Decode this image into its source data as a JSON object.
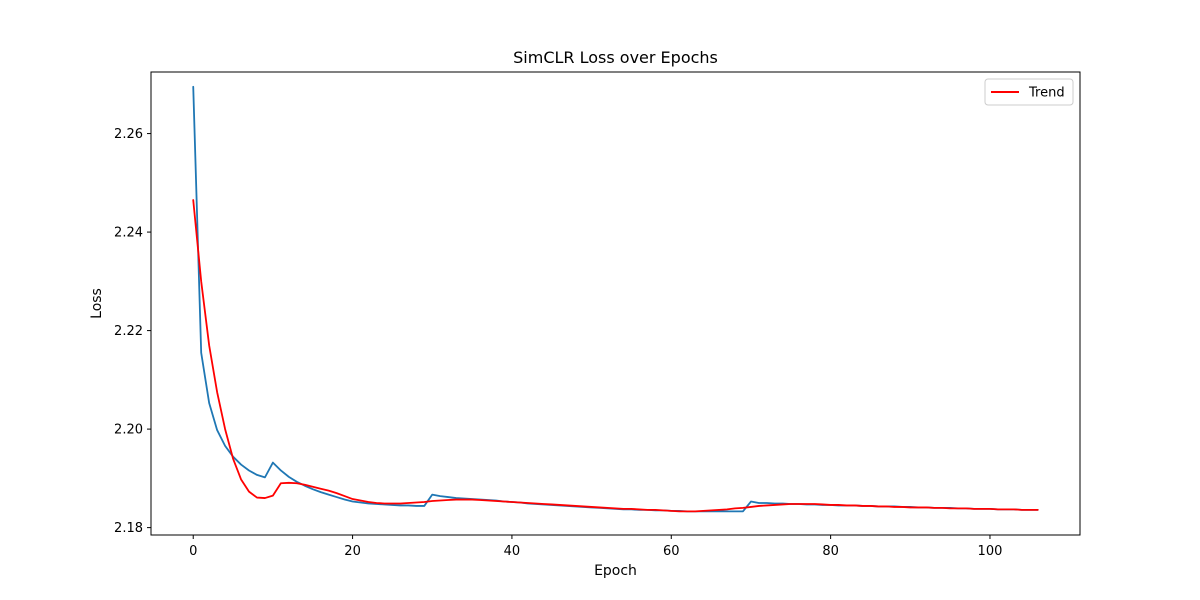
{
  "chart_data": {
    "type": "line",
    "title": "SimCLR Loss over Epochs",
    "xlabel": "Epoch",
    "ylabel": "Loss",
    "xlim": [
      -5.3,
      111.3
    ],
    "ylim": [
      2.1785,
      2.2725
    ],
    "xticks": [
      0,
      20,
      40,
      60,
      80,
      100
    ],
    "yticks": [
      2.18,
      2.2,
      2.22,
      2.24,
      2.26
    ],
    "grid": false,
    "legend_placement": "top-right",
    "colors": {
      "loss": "#1f77b4",
      "trend": "#ff0000"
    },
    "series": [
      {
        "key": "loss",
        "name": "",
        "x": [
          0,
          1,
          2,
          3,
          4,
          5,
          6,
          7,
          8,
          9,
          10,
          11,
          12,
          13,
          14,
          15,
          16,
          17,
          18,
          19,
          20,
          21,
          22,
          23,
          24,
          25,
          26,
          27,
          28,
          29,
          30,
          31,
          32,
          33,
          34,
          35,
          36,
          37,
          38,
          39,
          40,
          41,
          42,
          43,
          44,
          45,
          46,
          47,
          48,
          49,
          50,
          51,
          52,
          53,
          54,
          55,
          56,
          57,
          58,
          59,
          60,
          61,
          62,
          63,
          64,
          65,
          66,
          67,
          68,
          69,
          70,
          71,
          72,
          73,
          74,
          75,
          76,
          77,
          78,
          79,
          80,
          81,
          82,
          83,
          84,
          85,
          86,
          87,
          88,
          89,
          90,
          91,
          92,
          93,
          94,
          95,
          96,
          97,
          98,
          99,
          100,
          101,
          102,
          103,
          104,
          105,
          106
        ],
        "values": [
          2.2695,
          2.2155,
          2.2053,
          2.1998,
          2.1966,
          2.1944,
          2.1928,
          2.1916,
          2.1907,
          2.1902,
          2.1932,
          2.1916,
          2.1903,
          2.1893,
          2.1885,
          2.1878,
          2.1872,
          2.1867,
          2.1862,
          2.1857,
          2.1853,
          2.1851,
          2.1849,
          2.1848,
          2.1847,
          2.1846,
          2.1845,
          2.1845,
          2.1844,
          2.1844,
          2.1867,
          2.1864,
          2.1862,
          2.186,
          2.1859,
          2.1858,
          2.1857,
          2.1856,
          2.1855,
          2.1853,
          2.1852,
          2.1851,
          2.1849,
          2.1848,
          2.1847,
          2.1846,
          2.1845,
          2.1844,
          2.1843,
          2.1842,
          2.1841,
          2.184,
          2.1839,
          2.1838,
          2.1837,
          2.1837,
          2.1836,
          2.1836,
          2.1835,
          2.1835,
          2.1834,
          2.1834,
          2.1833,
          2.1833,
          2.1833,
          2.1833,
          2.1833,
          2.1833,
          2.1833,
          2.1833,
          2.1853,
          2.185,
          2.185,
          2.1849,
          2.1849,
          2.1848,
          2.1848,
          2.1847,
          2.1847,
          2.1846,
          2.1846,
          2.1845,
          2.1845,
          2.1845,
          2.1844,
          2.1844,
          2.1843,
          2.1843,
          2.1843,
          2.1842,
          2.1842,
          2.1841,
          2.1841,
          2.184,
          2.184,
          2.184,
          2.1839,
          2.1839,
          2.1838,
          2.1838,
          2.1838,
          2.1837,
          2.1837,
          2.1837,
          2.1836,
          2.1836,
          2.1836
        ]
      },
      {
        "key": "trend",
        "name": "Trend",
        "x": [
          0,
          1,
          2,
          3,
          4,
          5,
          6,
          7,
          8,
          9,
          10,
          11,
          12,
          13,
          14,
          15,
          16,
          17,
          18,
          19,
          20,
          21,
          22,
          23,
          24,
          25,
          26,
          27,
          28,
          29,
          30,
          31,
          32,
          33,
          34,
          35,
          36,
          37,
          38,
          39,
          40,
          41,
          42,
          43,
          44,
          45,
          46,
          47,
          48,
          49,
          50,
          51,
          52,
          53,
          54,
          55,
          56,
          57,
          58,
          59,
          60,
          61,
          62,
          63,
          64,
          65,
          66,
          67,
          68,
          69,
          70,
          71,
          72,
          73,
          74,
          75,
          76,
          77,
          78,
          79,
          80,
          81,
          82,
          83,
          84,
          85,
          86,
          87,
          88,
          89,
          90,
          91,
          92,
          93,
          94,
          95,
          96,
          97,
          98,
          99,
          100,
          101,
          102,
          103,
          104,
          105,
          106
        ],
        "values": [
          2.2465,
          2.23,
          2.217,
          2.2075,
          2.2,
          2.194,
          2.1898,
          2.1873,
          2.1861,
          2.186,
          2.1865,
          2.189,
          2.1891,
          2.189,
          2.1887,
          2.1883,
          2.1879,
          2.1875,
          2.187,
          2.1864,
          2.1858,
          2.1855,
          2.1852,
          2.185,
          2.1849,
          2.1849,
          2.1849,
          2.185,
          2.1851,
          2.1852,
          2.1854,
          2.1855,
          2.1856,
          2.1857,
          2.1857,
          2.1857,
          2.1856,
          2.1855,
          2.1854,
          2.1853,
          2.1852,
          2.1851,
          2.185,
          2.1849,
          2.1848,
          2.1847,
          2.1846,
          2.1845,
          2.1844,
          2.1843,
          2.1842,
          2.1841,
          2.184,
          2.1839,
          2.1838,
          2.1838,
          2.1837,
          2.1836,
          2.1836,
          2.1835,
          2.1834,
          2.1833,
          2.1833,
          2.1833,
          2.1834,
          2.1835,
          2.1836,
          2.1837,
          2.1839,
          2.184,
          2.1842,
          2.1844,
          2.1845,
          2.1846,
          2.1847,
          2.1848,
          2.1848,
          2.1848,
          2.1848,
          2.1847,
          2.1846,
          2.1846,
          2.1845,
          2.1845,
          2.1844,
          2.1844,
          2.1843,
          2.1843,
          2.1842,
          2.1842,
          2.1841,
          2.1841,
          2.1841,
          2.184,
          2.184,
          2.1839,
          2.1839,
          2.1839,
          2.1838,
          2.1838,
          2.1838,
          2.1837,
          2.1837,
          2.1837,
          2.1836,
          2.1836,
          2.1836
        ]
      }
    ]
  }
}
